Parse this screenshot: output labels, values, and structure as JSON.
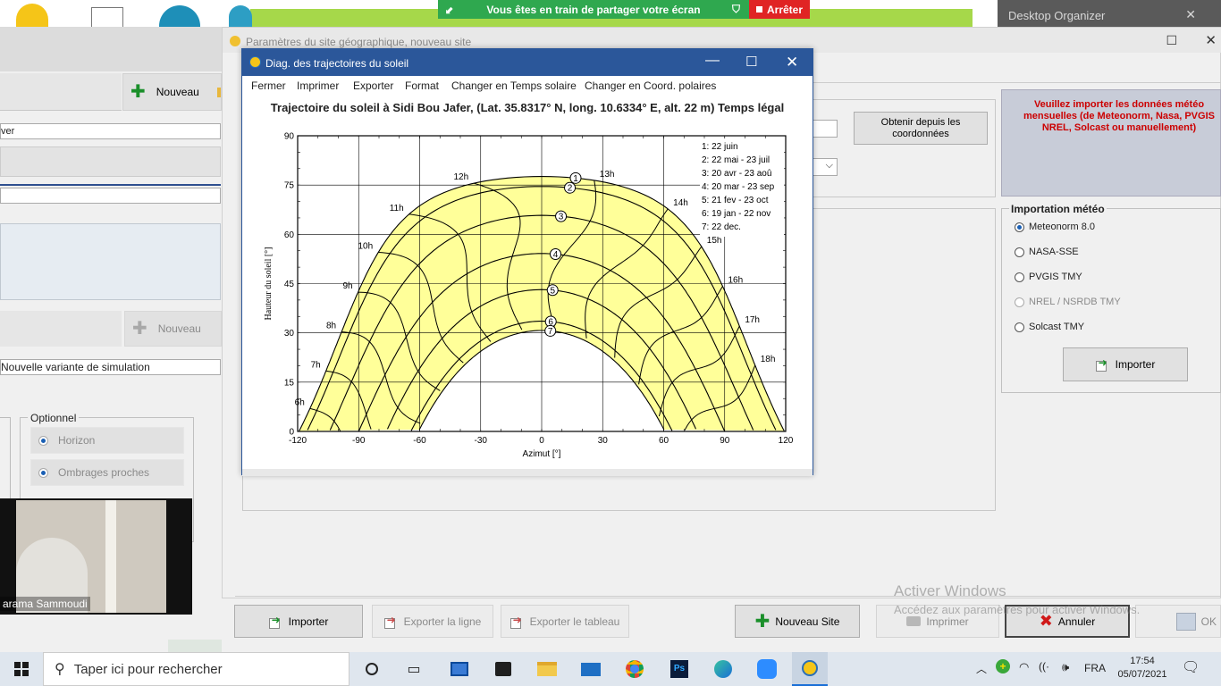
{
  "share_bar": {
    "text": "Vous êtes en train de partager votre écran",
    "stop": "Arrêter"
  },
  "desktop_organizer": {
    "title": "Desktop Organizer"
  },
  "site_dialog": {
    "title": "Paramètres du site géographique, nouveau site"
  },
  "left_panel": {
    "nouveau_top": "Nouveau",
    "field_partial": "ver",
    "nouveau_mid": "Nouveau",
    "variant": "Nouvelle variante de simulation",
    "optional": {
      "legend": "Optionnel",
      "items": [
        "Horizon",
        "Ombrages proches"
      ]
    }
  },
  "webcam": {
    "name": "arama Sammoudi"
  },
  "right_panel": {
    "obtain_button": "Obtenir depuis les coordonnées",
    "warning": "Veuillez importer les données météo mensuelles (de Meteonorm, Nasa, PVGIS NREL, Solcast ou manuellement)",
    "import_group": {
      "legend": "Importation météo",
      "options": [
        {
          "label": "Meteonorm 8.0",
          "checked": true,
          "disabled": false
        },
        {
          "label": "NASA-SSE",
          "checked": false,
          "disabled": false
        },
        {
          "label": "PVGIS TMY",
          "checked": false,
          "disabled": false
        },
        {
          "label": "NREL / NSRDB TMY",
          "checked": false,
          "disabled": true
        },
        {
          "label": "Solcast TMY",
          "checked": false,
          "disabled": false
        }
      ],
      "import_button": "Importer"
    }
  },
  "bottom_buttons": {
    "importer": "Importer",
    "export_line": "Exporter la ligne",
    "export_table": "Exporter le tableau",
    "new_site": "Nouveau Site",
    "print": "Imprimer",
    "cancel": "Annuler",
    "ok": "OK"
  },
  "watermark": {
    "line1": "Activer Windows",
    "line2": "Accédez aux paramètres pour activer Windows."
  },
  "sun_window": {
    "title": "Diag. des trajectoires du soleil",
    "menu": [
      "Fermer",
      "Imprimer",
      "Exporter",
      "Format",
      "Changer en Temps solaire",
      "Changer en Coord. polaires"
    ]
  },
  "chart_data": {
    "type": "line",
    "title": "Trajectoire du soleil à Sidi Bou Jafer, (Lat. 35.8317° N, long. 10.6334° E, alt. 22 m) Temps légal",
    "xlabel": "Azimut [°]",
    "ylabel": "Hauteur du soleil [°]",
    "xlim": [
      -120,
      120
    ],
    "ylim": [
      0,
      90
    ],
    "xticks": [
      -120,
      -90,
      -60,
      -30,
      0,
      30,
      60,
      90,
      120
    ],
    "yticks": [
      0,
      15,
      30,
      45,
      60,
      75,
      90
    ],
    "latitude": 35.8317,
    "fill_color": "#ffff99",
    "legend_position": "top-right",
    "legend": [
      "1: 22 juin",
      "2: 22 mai - 23 juil",
      "3: 20 avr - 23 aoû",
      "4: 20 mar - 23 sep",
      "5: 21 fev - 23 oct",
      "6: 19 jan - 22 nov",
      "7: 22 dec."
    ],
    "series": [
      {
        "name": "1",
        "declination": 23.44
      },
      {
        "name": "2",
        "declination": 20.4
      },
      {
        "name": "3",
        "declination": 11.6
      },
      {
        "name": "4",
        "declination": 0.0
      },
      {
        "name": "5",
        "declination": -11.0
      },
      {
        "name": "6",
        "declination": -20.6
      },
      {
        "name": "7",
        "declination": -23.44
      }
    ],
    "hour_labels": [
      "6h",
      "7h",
      "8h",
      "9h",
      "10h",
      "11h",
      "12h",
      "13h",
      "14h",
      "15h",
      "16h",
      "17h",
      "18h"
    ]
  },
  "taskbar": {
    "search": "Taper ici pour rechercher",
    "lang": "FRA",
    "time": "17:54",
    "date": "05/07/2021"
  }
}
